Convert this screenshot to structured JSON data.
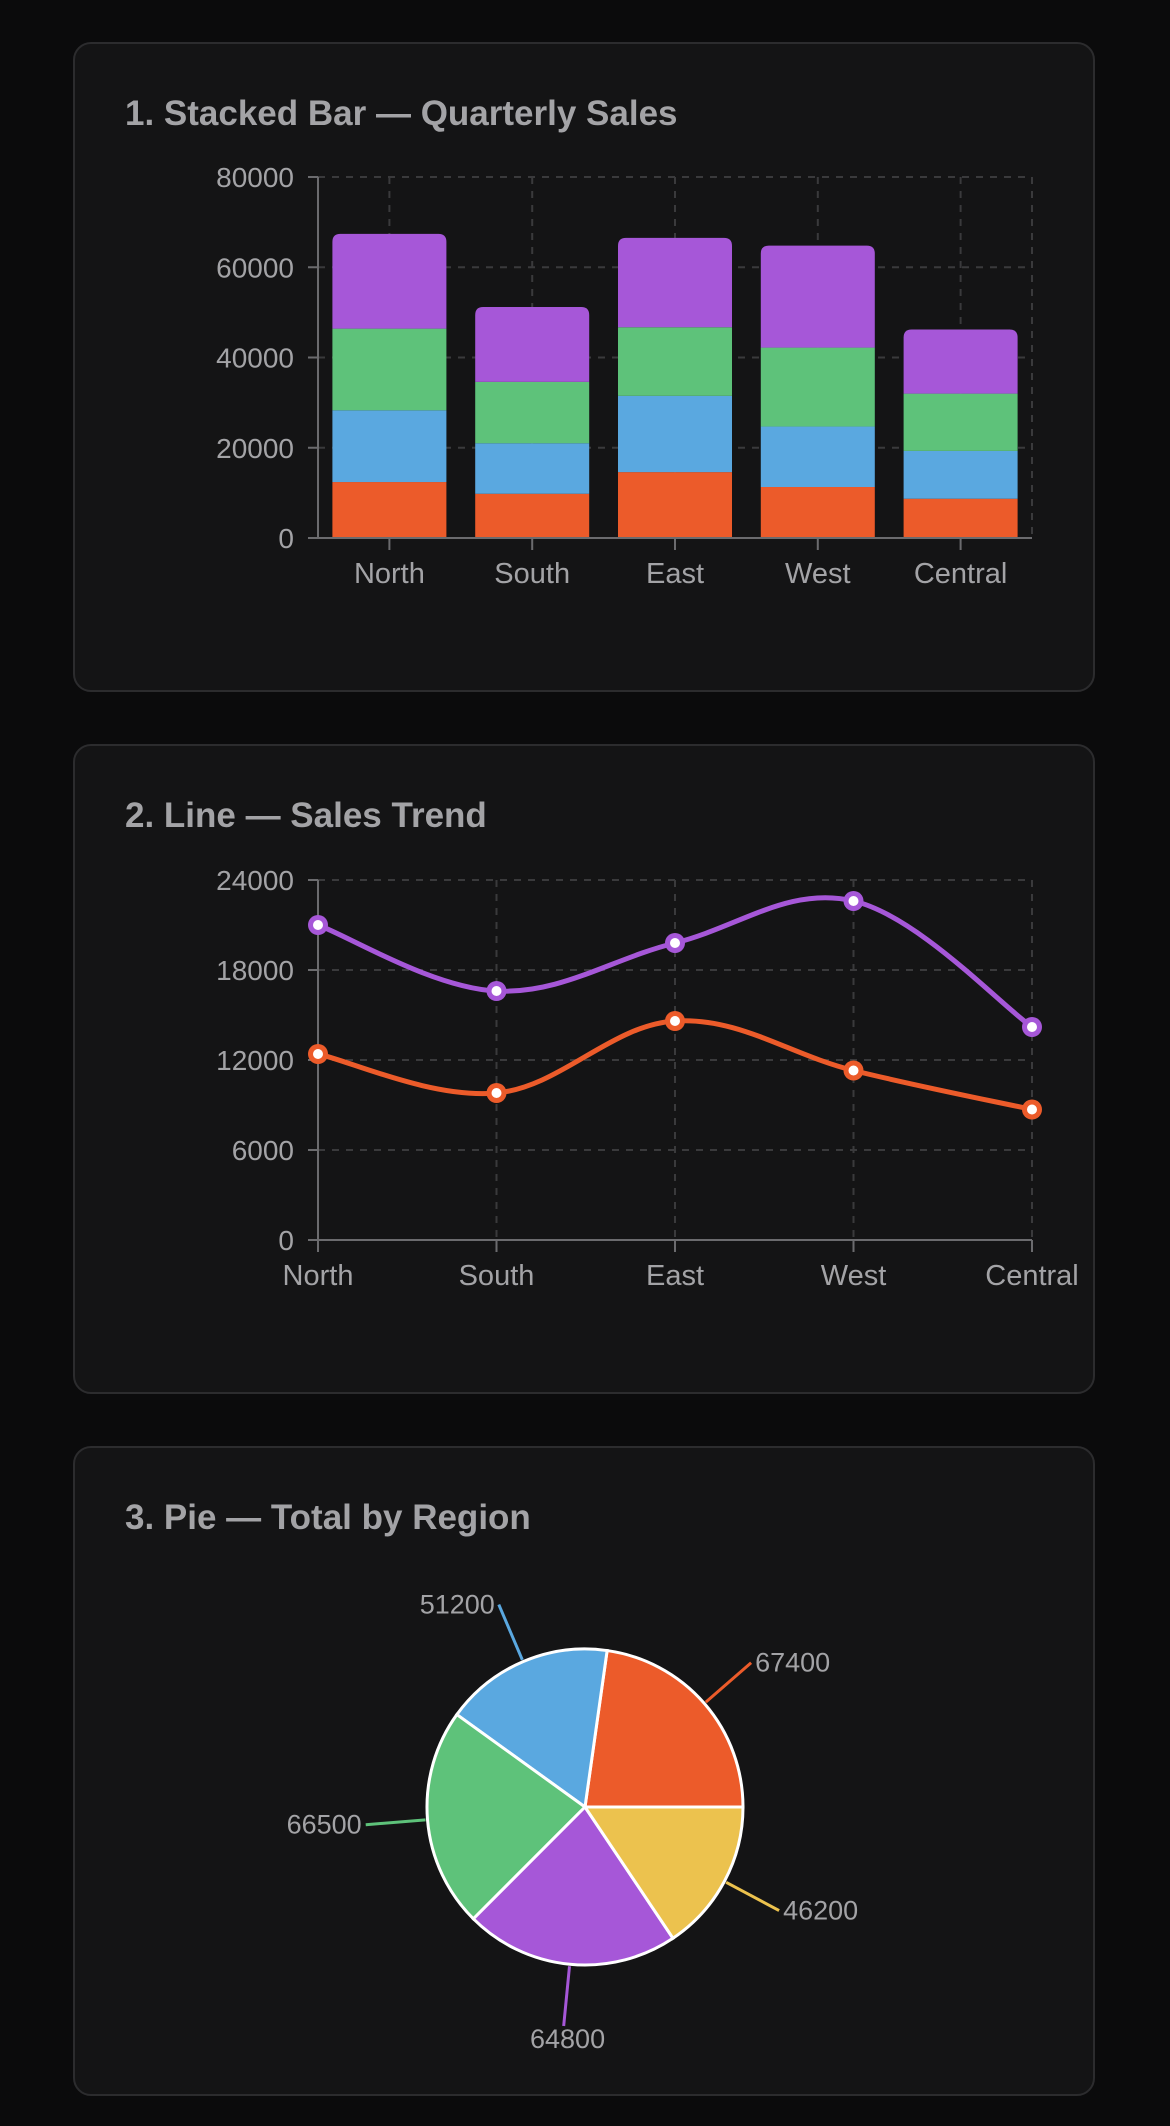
{
  "colors": {
    "background": "#0b0b0c",
    "card": "#141415",
    "text": "#a3a3a6",
    "axis": "#6b6b6e",
    "grid": "#3a3a3c",
    "series": [
      "#ec5b2a",
      "#5aa8e0",
      "#5ec27a",
      "#a657d8"
    ],
    "pie": [
      "#ec5b2a",
      "#5aa8e0",
      "#5ec27a",
      "#a657d8",
      "#ecc24e"
    ]
  },
  "chart_data": [
    {
      "type": "bar",
      "stacked": true,
      "title": "1. Stacked Bar — Quarterly Sales",
      "categories": [
        "North",
        "South",
        "East",
        "West",
        "Central"
      ],
      "series": [
        {
          "values": [
            12400,
            9800,
            14600,
            11300,
            8700
          ]
        },
        {
          "values": [
            15900,
            11200,
            16900,
            13400,
            10600
          ]
        },
        {
          "values": [
            18100,
            13600,
            15200,
            17500,
            12700
          ]
        },
        {
          "values": [
            21000,
            16600,
            19800,
            22600,
            14200
          ]
        }
      ],
      "yticks": [
        "80000",
        "60000",
        "40000",
        "20000",
        "0"
      ],
      "ylim": [
        0,
        80000
      ],
      "grid": true
    },
    {
      "type": "line",
      "title": "2. Line — Sales Trend",
      "categories": [
        "North",
        "South",
        "East",
        "West",
        "Central"
      ],
      "series": [
        {
          "values": [
            12400,
            9800,
            14600,
            11300,
            8700
          ]
        },
        {
          "values": [
            21000,
            16600,
            19800,
            22600,
            14200
          ]
        }
      ],
      "yticks": [
        "24000",
        "18000",
        "12000",
        "6000",
        "0"
      ],
      "ylim": [
        0,
        24000
      ],
      "grid": true
    },
    {
      "type": "pie",
      "title": "3. Pie — Total by Region",
      "values": [
        67400,
        51200,
        66500,
        64800,
        46200
      ],
      "labels": [
        "67400",
        "51200",
        "66500",
        "64800",
        "46200"
      ]
    }
  ]
}
